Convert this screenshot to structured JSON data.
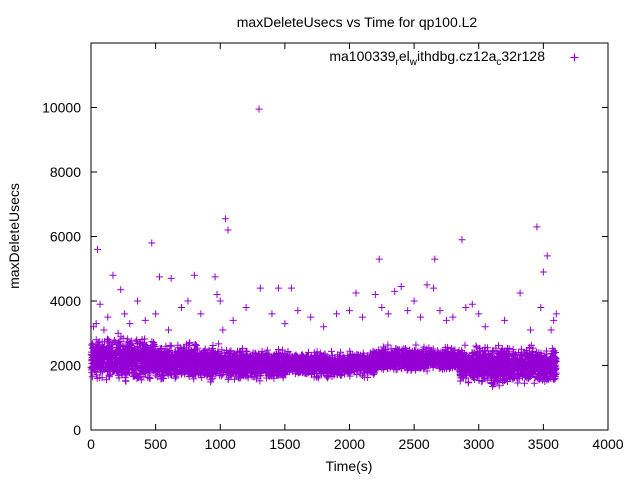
{
  "chart_data": {
    "type": "scatter",
    "title": "maxDeleteUsecs vs Time for qp100.L2",
    "xlabel": "Time(s)",
    "ylabel": "maxDeleteUsecs",
    "xlim": [
      0,
      4000
    ],
    "ylim": [
      0,
      12000
    ],
    "xticks": [
      0,
      500,
      1000,
      1500,
      2000,
      2500,
      3000,
      3500,
      4000
    ],
    "yticks": [
      0,
      2000,
      4000,
      6000,
      8000,
      10000
    ],
    "xtick_labels": [
      "0",
      "500",
      "1000",
      "1500",
      "2000",
      "2500",
      "3000",
      "3500",
      "4000"
    ],
    "ytick_labels": [
      "0",
      "2000",
      "4000",
      "6000",
      "8000",
      "10000"
    ],
    "grid": false,
    "legend_position": "top-right",
    "legend": {
      "parts": [
        "ma100339",
        "r",
        "el",
        "w",
        "ithdbg.cz12a",
        "c",
        "32r128"
      ]
    },
    "marker": "+",
    "color": "#9400d3",
    "series": [
      {
        "name": "ma100339_rel_withdbg.cz12a_c32r128",
        "x_range": [
          0,
          3600
        ],
        "band": [
          {
            "x0": 0,
            "x1": 500,
            "lo": 1400,
            "hi": 3000
          },
          {
            "x0": 500,
            "x1": 1000,
            "lo": 1400,
            "hi": 2800
          },
          {
            "x0": 1000,
            "x1": 1500,
            "lo": 1450,
            "hi": 2600
          },
          {
            "x0": 1500,
            "x1": 2000,
            "lo": 1550,
            "hi": 2500
          },
          {
            "x0": 2000,
            "x1": 2200,
            "lo": 1600,
            "hi": 2500
          },
          {
            "x0": 2200,
            "x1": 2850,
            "lo": 1750,
            "hi": 2650
          },
          {
            "x0": 2850,
            "x1": 3600,
            "lo": 1300,
            "hi": 2700
          }
        ],
        "outliers": [
          [
            20,
            3200
          ],
          [
            40,
            3300
          ],
          [
            50,
            5600
          ],
          [
            70,
            3900
          ],
          [
            100,
            3100
          ],
          [
            130,
            3500
          ],
          [
            170,
            4800
          ],
          [
            210,
            3000
          ],
          [
            230,
            4350
          ],
          [
            260,
            3600
          ],
          [
            300,
            3300
          ],
          [
            360,
            4000
          ],
          [
            420,
            3400
          ],
          [
            470,
            5800
          ],
          [
            500,
            3600
          ],
          [
            530,
            4750
          ],
          [
            600,
            3100
          ],
          [
            620,
            4700
          ],
          [
            700,
            3800
          ],
          [
            750,
            4000
          ],
          [
            800,
            4800
          ],
          [
            850,
            3600
          ],
          [
            960,
            4750
          ],
          [
            975,
            4200
          ],
          [
            1000,
            4000
          ],
          [
            1020,
            3100
          ],
          [
            1040,
            6550
          ],
          [
            1060,
            6200
          ],
          [
            1100,
            3400
          ],
          [
            1200,
            3800
          ],
          [
            1300,
            9950
          ],
          [
            1310,
            4400
          ],
          [
            1400,
            3600
          ],
          [
            1450,
            4400
          ],
          [
            1500,
            3300
          ],
          [
            1550,
            4400
          ],
          [
            1600,
            3700
          ],
          [
            1700,
            3500
          ],
          [
            1800,
            3200
          ],
          [
            1900,
            3600
          ],
          [
            2000,
            3700
          ],
          [
            2050,
            4250
          ],
          [
            2100,
            3500
          ],
          [
            2200,
            4200
          ],
          [
            2230,
            5300
          ],
          [
            2250,
            3800
          ],
          [
            2300,
            3600
          ],
          [
            2350,
            4300
          ],
          [
            2400,
            4450
          ],
          [
            2450,
            3700
          ],
          [
            2500,
            4000
          ],
          [
            2550,
            3500
          ],
          [
            2600,
            4500
          ],
          [
            2650,
            4400
          ],
          [
            2660,
            5300
          ],
          [
            2700,
            3700
          ],
          [
            2750,
            3400
          ],
          [
            2800,
            3500
          ],
          [
            2870,
            5900
          ],
          [
            2900,
            3800
          ],
          [
            2950,
            3900
          ],
          [
            3000,
            3600
          ],
          [
            3050,
            3200
          ],
          [
            3200,
            3400
          ],
          [
            3320,
            4250
          ],
          [
            3400,
            3100
          ],
          [
            3450,
            6300
          ],
          [
            3480,
            3800
          ],
          [
            3500,
            4900
          ],
          [
            3530,
            5400
          ],
          [
            3560,
            3100
          ],
          [
            3580,
            3400
          ],
          [
            3600,
            3600
          ]
        ]
      }
    ]
  }
}
